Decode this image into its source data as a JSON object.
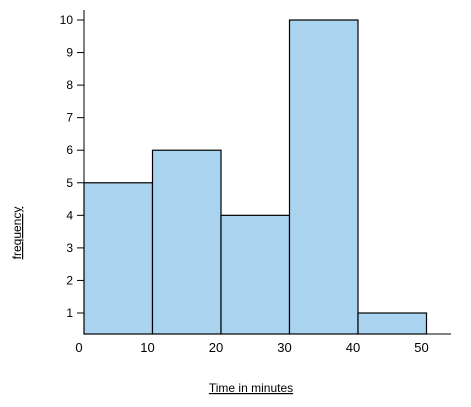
{
  "chart_data": {
    "type": "bar",
    "histogram": true,
    "xlabel": "Time in minutes",
    "ylabel": "frequency",
    "title": "",
    "bins": [
      {
        "from": 0,
        "to": 10,
        "value": 5
      },
      {
        "from": 10,
        "to": 20,
        "value": 6
      },
      {
        "from": 20,
        "to": 30,
        "value": 4
      },
      {
        "from": 30,
        "to": 40,
        "value": 10
      },
      {
        "from": 40,
        "to": 50,
        "value": 1
      }
    ],
    "x_ticks": [
      0,
      10,
      20,
      30,
      40,
      50
    ],
    "y_ticks": [
      1,
      2,
      3,
      4,
      5,
      6,
      7,
      8,
      9,
      10
    ],
    "xlim": [
      0,
      55
    ],
    "ylim": [
      0.35,
      10.5
    ],
    "grid": false,
    "bar_color": "#aad3ef",
    "edge_color": "#000000"
  }
}
